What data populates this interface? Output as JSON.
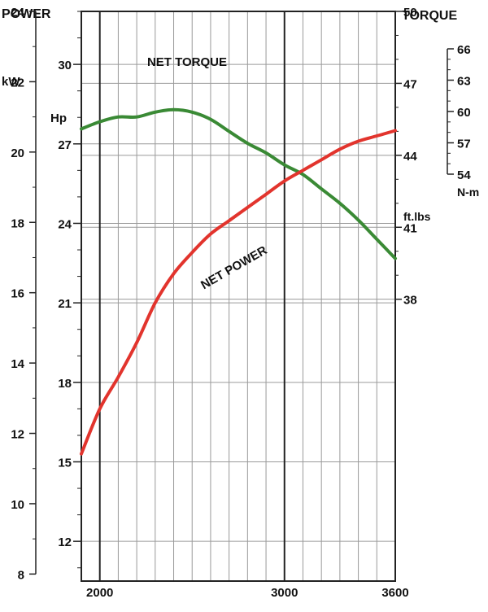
{
  "chart_data": {
    "type": "line",
    "left_title": "POWER",
    "right_title": "TORQUE",
    "axes": {
      "x": {
        "range": [
          1900,
          3600
        ],
        "major_ticks": [
          "2000",
          "3000",
          "3600"
        ]
      },
      "kw": {
        "unit": "kW",
        "range": [
          7.8,
          24.0
        ],
        "ticks": [
          "8",
          "10",
          "12",
          "14",
          "16",
          "18",
          "20",
          "22",
          "24"
        ]
      },
      "hp": {
        "unit": "Hp",
        "range": [
          10.5,
          32.0
        ],
        "ticks": [
          "12",
          "15",
          "18",
          "21",
          "24",
          "27",
          "30"
        ]
      },
      "ftlbs": {
        "unit": "ft.lbs",
        "range": [
          26.25,
          50.0
        ],
        "ticks": [
          "38",
          "41",
          "44",
          "47",
          "50"
        ]
      },
      "nm": {
        "unit": "N-m",
        "range": [
          54,
          66
        ],
        "ticks": [
          "54",
          "57",
          "60",
          "63",
          "66"
        ]
      }
    },
    "series": [
      {
        "name": "NET TORQUE",
        "axis": "ftlbs",
        "color": "#3a8a35",
        "x": [
          1900,
          2000,
          2100,
          2200,
          2300,
          2400,
          2500,
          2600,
          2700,
          2800,
          2900,
          3000,
          3100,
          3200,
          3300,
          3400,
          3500,
          3600
        ],
        "y": [
          45.1,
          45.4,
          45.6,
          45.6,
          45.8,
          45.9,
          45.8,
          45.5,
          45.0,
          44.5,
          44.1,
          43.6,
          43.2,
          42.6,
          42.0,
          41.3,
          40.5,
          39.7
        ]
      },
      {
        "name": "NET POWER",
        "axis": "hp",
        "color": "#e2342d",
        "x": [
          1900,
          2000,
          2100,
          2200,
          2300,
          2400,
          2500,
          2600,
          2700,
          2800,
          2900,
          3000,
          3100,
          3200,
          3300,
          3400,
          3500,
          3600
        ],
        "y": [
          15.3,
          17.0,
          18.2,
          19.5,
          21.0,
          22.1,
          22.9,
          23.6,
          24.1,
          24.6,
          25.1,
          25.6,
          26.0,
          26.4,
          26.8,
          27.1,
          27.3,
          27.5
        ]
      }
    ],
    "curve_labels": {
      "torque": "NET TORQUE",
      "power": "NET POWER"
    },
    "grid": true
  }
}
